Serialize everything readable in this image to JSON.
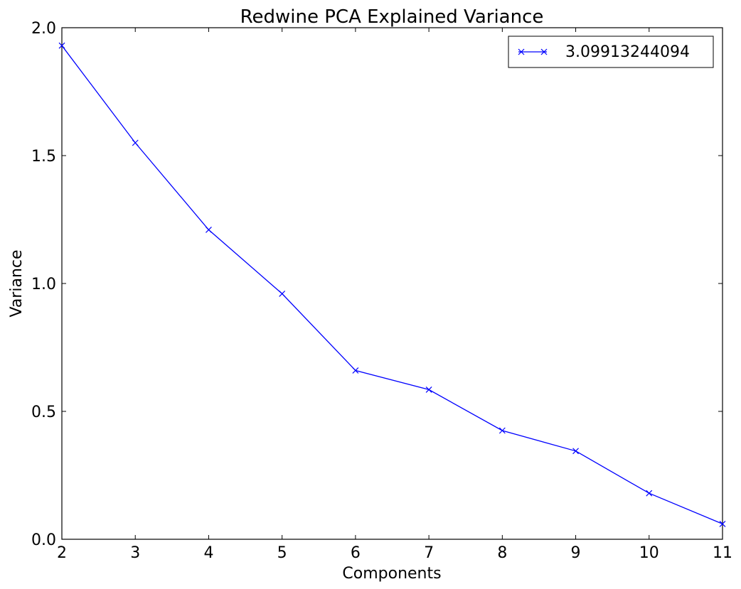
{
  "chart_data": {
    "type": "line",
    "title": "Redwine PCA Explained Variance",
    "xlabel": "Components",
    "ylabel": "Variance",
    "x": [
      2,
      3,
      4,
      5,
      6,
      7,
      8,
      9,
      10,
      11
    ],
    "xlim": [
      2,
      11
    ],
    "ylim": [
      0.0,
      2.0
    ],
    "xticks": [
      2,
      3,
      4,
      5,
      6,
      7,
      8,
      9,
      10,
      11
    ],
    "xtick_labels": [
      "2",
      "3",
      "4",
      "5",
      "6",
      "7",
      "8",
      "9",
      "10",
      "11"
    ],
    "yticks": [
      0.0,
      0.5,
      1.0,
      1.5,
      2.0
    ],
    "ytick_labels": [
      "0.0",
      "0.5",
      "1.0",
      "1.5",
      "2.0"
    ],
    "grid": false,
    "legend_position": "top-right",
    "series": [
      {
        "name": "3.09913244094",
        "color": "#0000ff",
        "marker": "x",
        "values": [
          1.93,
          1.55,
          1.21,
          0.96,
          0.66,
          0.585,
          0.425,
          0.345,
          0.18,
          0.06
        ]
      }
    ]
  }
}
